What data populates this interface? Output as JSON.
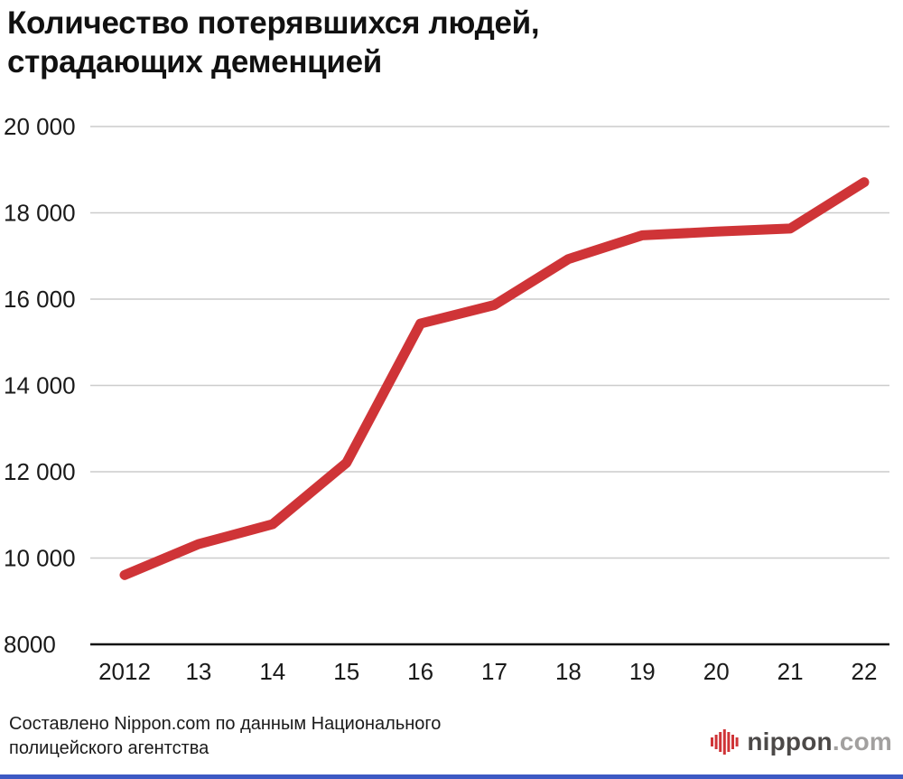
{
  "title": {
    "line1": "Количество потерявшихся людей,",
    "line2": "страдающих деменцией"
  },
  "chart_data": {
    "type": "line",
    "title": "Количество потерявшихся людей, страдающих деменцией",
    "x": [
      2012,
      2013,
      2014,
      2015,
      2016,
      2017,
      2018,
      2019,
      2020,
      2021,
      2022
    ],
    "x_tick_labels": [
      "2012",
      "13",
      "14",
      "15",
      "16",
      "17",
      "18",
      "19",
      "20",
      "21",
      "22"
    ],
    "values": [
      9607,
      10322,
      10783,
      12208,
      15432,
      15863,
      16927,
      17479,
      17565,
      17636,
      18709
    ],
    "ylim": [
      8000,
      20000
    ],
    "y_ticks": [
      8000,
      10000,
      12000,
      14000,
      16000,
      18000,
      20000
    ],
    "y_tick_labels": [
      "8000",
      "10 000",
      "12 000",
      "14 000",
      "16 000",
      "18 000",
      "20 000"
    ],
    "line_color": "#cf3437",
    "grid": true,
    "legend": "none",
    "xlabel": "",
    "ylabel": ""
  },
  "footer": {
    "source_line1": "Составлено Nippon.com по данным Национального",
    "source_line2": "полицейского агентства",
    "logo": {
      "name": "nippon",
      "suffix": ".com",
      "icon": "soundwave-bars-icon"
    }
  },
  "colors": {
    "accent_red": "#cf3437",
    "grid": "#cccccc",
    "axis": "#111111",
    "text": "#1a1a1a",
    "logo_name": "#4c4948",
    "logo_suffix": "#a2a09f",
    "bottom_bar": "#3d59c3"
  }
}
